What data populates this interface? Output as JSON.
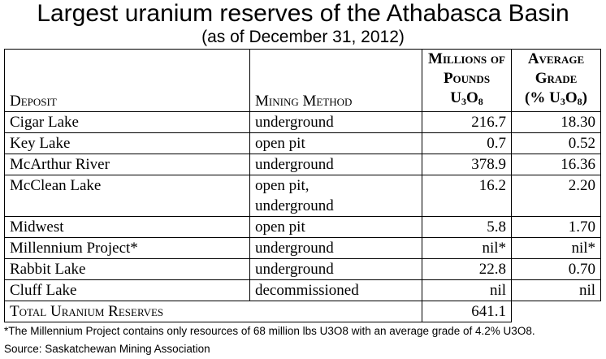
{
  "title": "Largest uranium reserves of the Athabasca Basin",
  "subtitle": "(as of December 31, 2012)",
  "headers": {
    "deposit": "Deposit",
    "method": "Mining Method",
    "pounds_line1": "Millions of",
    "pounds_line2": "Pounds",
    "pounds_line3_main": "U",
    "pounds_line3_sub1": "3",
    "pounds_line3_mid": "O",
    "pounds_line3_sub2": "8",
    "grade_line1": "Average",
    "grade_line2": "Grade",
    "grade_line3_pre": "(% U",
    "grade_line3_sub1": "3",
    "grade_line3_mid": "O",
    "grade_line3_sub2": "8",
    "grade_line3_post": ")"
  },
  "rows": [
    {
      "deposit": "Cigar Lake",
      "method": "underground",
      "method2": "",
      "pounds": "216.7",
      "grade": "18.30"
    },
    {
      "deposit": "Key Lake",
      "method": "open pit",
      "method2": "",
      "pounds": "0.7",
      "grade": "0.52"
    },
    {
      "deposit": "McArthur River",
      "method": "underground",
      "method2": "",
      "pounds": "378.9",
      "grade": "16.36"
    },
    {
      "deposit": "McClean Lake",
      "method": "open pit,",
      "method2": "underground",
      "pounds": "16.2",
      "grade": "2.20"
    },
    {
      "deposit": "Midwest",
      "method": "open pit",
      "method2": "",
      "pounds": "5.8",
      "grade": "1.70"
    },
    {
      "deposit": "Millennium Project*",
      "method": "underground",
      "method2": "",
      "pounds": "nil*",
      "grade": "nil*"
    },
    {
      "deposit": "Rabbit Lake",
      "method": "underground",
      "method2": "",
      "pounds": "22.8",
      "grade": "0.70"
    },
    {
      "deposit": "Cluff Lake",
      "method": "decommissioned",
      "method2": "",
      "pounds": "nil",
      "grade": "nil"
    }
  ],
  "total": {
    "label": "Total Uranium Reserves",
    "pounds": "641.1"
  },
  "footnote": "*The Millennium Project contains only resources of 68 million lbs U3O8 with an average grade of 4.2% U3O8.",
  "source": "Source: Saskatchewan Mining Association"
}
